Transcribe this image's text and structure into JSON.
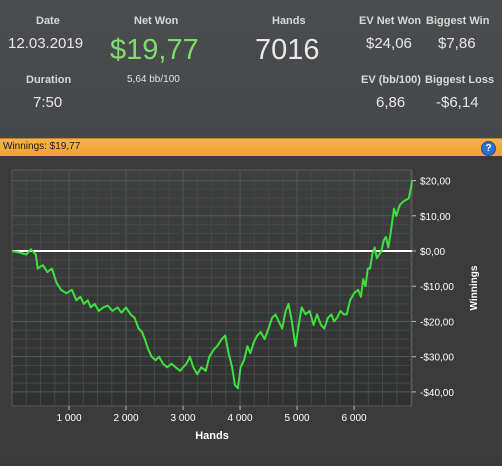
{
  "stats": {
    "date_label": "Date",
    "date_value": "12.03.2019",
    "net_won_label": "Net Won",
    "net_won_value": "$19,77",
    "bb_per_100": "5,64 bb/100",
    "hands_label": "Hands",
    "hands_value": "7016",
    "ev_net_won_label": "EV Net Won",
    "ev_net_won_value": "$24,06",
    "biggest_win_label": "Biggest Win",
    "biggest_win_value": "$7,86",
    "duration_label": "Duration",
    "duration_value": "7:50",
    "ev_bb100_label": "EV (bb/100)",
    "ev_bb100_value": "6,86",
    "biggest_loss_label": "Biggest Loss",
    "biggest_loss_value": "-$6,14",
    "net_won_color": "#7fdc6a"
  },
  "titlebar": {
    "text": "Winnings: $19,77",
    "help_icon": "?"
  },
  "chart_data": {
    "type": "line",
    "xlabel": "Hands",
    "ylabel": "Winnings",
    "xlim": [
      0,
      7016
    ],
    "ylim": [
      -44,
      23
    ],
    "x_ticks": [
      1000,
      2000,
      3000,
      4000,
      5000,
      6000
    ],
    "x_tick_labels": [
      "1 000",
      "2 000",
      "3 000",
      "4 000",
      "5 000",
      "6 000"
    ],
    "y_ticks": [
      20,
      10,
      0,
      -10,
      -20,
      -30,
      -40
    ],
    "y_tick_labels": [
      "$20,00",
      "$10,00",
      "$0,00",
      "-$10,00",
      "-$20,00",
      "-$30,00",
      "-$40,00"
    ],
    "grid": true,
    "zero_line": true,
    "series": [
      {
        "color": "#3ee03e",
        "points": [
          [
            0,
            0
          ],
          [
            150,
            -0.5
          ],
          [
            250,
            -1
          ],
          [
            330,
            0.5
          ],
          [
            420,
            -1
          ],
          [
            450,
            -5
          ],
          [
            540,
            -4
          ],
          [
            620,
            -6
          ],
          [
            700,
            -5
          ],
          [
            780,
            -9
          ],
          [
            860,
            -11
          ],
          [
            950,
            -12
          ],
          [
            1050,
            -11
          ],
          [
            1130,
            -14
          ],
          [
            1200,
            -13
          ],
          [
            1260,
            -15
          ],
          [
            1330,
            -14
          ],
          [
            1380,
            -16
          ],
          [
            1450,
            -15
          ],
          [
            1520,
            -17
          ],
          [
            1600,
            -16
          ],
          [
            1680,
            -15.5
          ],
          [
            1760,
            -17
          ],
          [
            1850,
            -16
          ],
          [
            1920,
            -17.5
          ],
          [
            2000,
            -16
          ],
          [
            2080,
            -18
          ],
          [
            2150,
            -19
          ],
          [
            2220,
            -22
          ],
          [
            2280,
            -23
          ],
          [
            2330,
            -25
          ],
          [
            2390,
            -28
          ],
          [
            2450,
            -30
          ],
          [
            2520,
            -31
          ],
          [
            2580,
            -30
          ],
          [
            2650,
            -32
          ],
          [
            2720,
            -33
          ],
          [
            2800,
            -32
          ],
          [
            2870,
            -33
          ],
          [
            2950,
            -34
          ],
          [
            3000,
            -33
          ],
          [
            3060,
            -32
          ],
          [
            3120,
            -30
          ],
          [
            3180,
            -33
          ],
          [
            3250,
            -35
          ],
          [
            3320,
            -33
          ],
          [
            3400,
            -34
          ],
          [
            3460,
            -30
          ],
          [
            3540,
            -28
          ],
          [
            3600,
            -27
          ],
          [
            3680,
            -25
          ],
          [
            3740,
            -24
          ],
          [
            3800,
            -29
          ],
          [
            3860,
            -33
          ],
          [
            3910,
            -38
          ],
          [
            3960,
            -39
          ],
          [
            4010,
            -33
          ],
          [
            4070,
            -31
          ],
          [
            4130,
            -27
          ],
          [
            4180,
            -29
          ],
          [
            4240,
            -26
          ],
          [
            4300,
            -24
          ],
          [
            4360,
            -23
          ],
          [
            4430,
            -25
          ],
          [
            4500,
            -22
          ],
          [
            4560,
            -19
          ],
          [
            4620,
            -18
          ],
          [
            4680,
            -20
          ],
          [
            4740,
            -22
          ],
          [
            4800,
            -17
          ],
          [
            4850,
            -15
          ],
          [
            4910,
            -20
          ],
          [
            4970,
            -27
          ],
          [
            5020,
            -22
          ],
          [
            5080,
            -16
          ],
          [
            5150,
            -18
          ],
          [
            5220,
            -17
          ],
          [
            5290,
            -21
          ],
          [
            5350,
            -18
          ],
          [
            5420,
            -21
          ],
          [
            5480,
            -22
          ],
          [
            5540,
            -19
          ],
          [
            5600,
            -18
          ],
          [
            5650,
            -20
          ],
          [
            5700,
            -19
          ],
          [
            5760,
            -17
          ],
          [
            5820,
            -18
          ],
          [
            5870,
            -18
          ],
          [
            5930,
            -14
          ],
          [
            6000,
            -12
          ],
          [
            6070,
            -11
          ],
          [
            6120,
            -13
          ],
          [
            6160,
            -8
          ],
          [
            6200,
            -10
          ],
          [
            6240,
            -5
          ],
          [
            6280,
            -5
          ],
          [
            6320,
            -1
          ],
          [
            6360,
            1
          ],
          [
            6400,
            -2
          ],
          [
            6440,
            -1
          ],
          [
            6480,
            0
          ],
          [
            6520,
            3
          ],
          [
            6560,
            4
          ],
          [
            6600,
            1
          ],
          [
            6640,
            5
          ],
          [
            6700,
            12
          ],
          [
            6740,
            10
          ],
          [
            6800,
            13
          ],
          [
            6860,
            14
          ],
          [
            6910,
            14.5
          ],
          [
            6960,
            15
          ],
          [
            7000,
            18
          ],
          [
            7016,
            20
          ]
        ]
      }
    ]
  }
}
